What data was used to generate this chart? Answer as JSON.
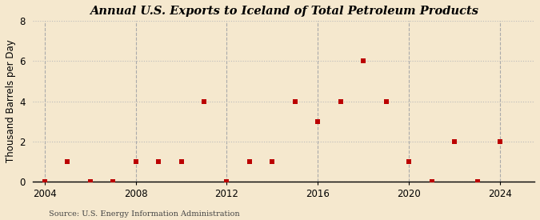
{
  "title": "Annual U.S. Exports to Iceland of Total Petroleum Products",
  "ylabel": "Thousand Barrels per Day",
  "source": "Source: U.S. Energy Information Administration",
  "background_color": "#f5e8ce",
  "years": [
    2004,
    2005,
    2006,
    2007,
    2008,
    2009,
    2010,
    2011,
    2012,
    2013,
    2014,
    2015,
    2016,
    2017,
    2018,
    2019,
    2020,
    2021,
    2022,
    2023,
    2024
  ],
  "values": [
    0,
    1,
    0,
    0,
    1,
    1,
    1,
    4,
    0,
    1,
    1,
    4,
    3,
    4,
    6,
    4,
    1,
    0,
    2,
    0,
    2
  ],
  "marker_color": "#bb0000",
  "marker_size": 18,
  "xlim": [
    2003.5,
    2025.5
  ],
  "ylim": [
    0,
    8
  ],
  "yticks": [
    0,
    2,
    4,
    6,
    8
  ],
  "xticks": [
    2004,
    2008,
    2012,
    2016,
    2020,
    2024
  ],
  "grid_color": "#bbbbbb",
  "vline_color": "#aaaaaa",
  "title_fontsize": 10.5,
  "axis_fontsize": 8.5,
  "source_fontsize": 7
}
